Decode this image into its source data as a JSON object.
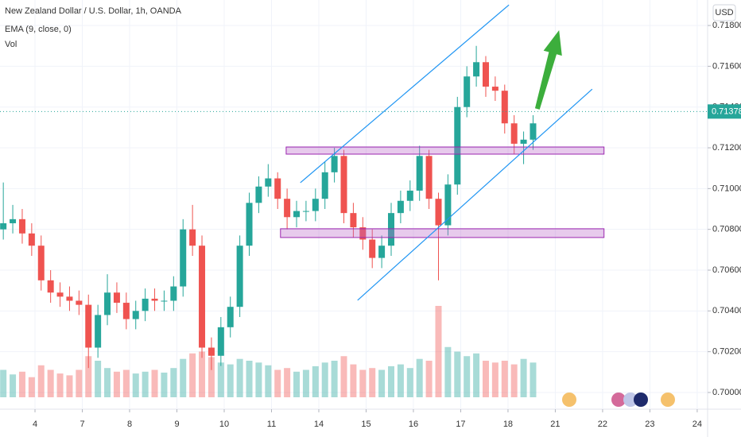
{
  "chart_data": {
    "type": "candlestick",
    "title": "New Zealand Dollar / U.S. Dollar, 1h, OANDA",
    "indicators": [
      "EMA (9, close, 0)",
      "Vol"
    ],
    "currency_button": "USD",
    "up_color": "#26a69a",
    "down_color": "#ef5350",
    "x": [
      -0.67,
      -0.47,
      -0.27,
      -0.07,
      0.13,
      0.33,
      0.53,
      0.73,
      0.93,
      1.13,
      1.33,
      1.53,
      1.73,
      1.93,
      2.13,
      2.33,
      2.53,
      2.73,
      2.93,
      3.13,
      3.33,
      3.53,
      3.73,
      3.93,
      4.13,
      4.33,
      4.53,
      4.73,
      4.93,
      5.13,
      5.33,
      5.53,
      5.73,
      5.93,
      6.13,
      6.33,
      6.53,
      6.73,
      6.93,
      7.13,
      7.33,
      7.53,
      7.73,
      7.93,
      8.13,
      8.33,
      8.53,
      8.73,
      8.93,
      9.13,
      9.33,
      9.53,
      9.73,
      9.93,
      10.13,
      10.33,
      10.53
    ],
    "open": [
      0.708,
      0.7083,
      0.7085,
      0.7078,
      0.7072,
      0.7055,
      0.7049,
      0.7047,
      0.7045,
      0.7043,
      0.7022,
      0.7038,
      0.7049,
      0.7044,
      0.7036,
      0.704,
      0.7046,
      0.7045,
      0.7045,
      0.7052,
      0.708,
      0.7072,
      0.7022,
      0.7018,
      0.7032,
      0.7042,
      0.7072,
      0.7093,
      0.7101,
      0.7105,
      0.7095,
      0.7086,
      0.7089,
      0.7089,
      0.7095,
      0.7108,
      0.7116,
      0.7088,
      0.7081,
      0.7075,
      0.7066,
      0.7072,
      0.7088,
      0.7094,
      0.7099,
      0.7116,
      0.7095,
      0.7082,
      0.7102,
      0.714,
      0.7155,
      0.7162,
      0.715,
      0.7148,
      0.7132,
      0.7122,
      0.7124
    ],
    "high": [
      0.7103,
      0.7092,
      0.709,
      0.7083,
      0.7077,
      0.706,
      0.7054,
      0.7052,
      0.705,
      0.7048,
      0.7043,
      0.7058,
      0.7054,
      0.7049,
      0.7045,
      0.7051,
      0.7051,
      0.705,
      0.7057,
      0.7085,
      0.7092,
      0.7077,
      0.7027,
      0.7037,
      0.7047,
      0.7077,
      0.7098,
      0.7106,
      0.7112,
      0.7108,
      0.71,
      0.7094,
      0.7094,
      0.71,
      0.7113,
      0.712,
      0.7119,
      0.7093,
      0.7086,
      0.708,
      0.7077,
      0.7093,
      0.7099,
      0.7104,
      0.7121,
      0.7119,
      0.7098,
      0.7107,
      0.7145,
      0.716,
      0.717,
      0.7165,
      0.7155,
      0.7151,
      0.7136,
      0.7128,
      0.7136
    ],
    "low": [
      0.7075,
      0.7078,
      0.7073,
      0.7067,
      0.705,
      0.7044,
      0.7042,
      0.704,
      0.7038,
      0.7012,
      0.7017,
      0.7033,
      0.7039,
      0.7031,
      0.7031,
      0.7035,
      0.704,
      0.704,
      0.704,
      0.7047,
      0.7067,
      0.7017,
      0.7011,
      0.7013,
      0.7027,
      0.7037,
      0.7067,
      0.7088,
      0.7096,
      0.709,
      0.708,
      0.7081,
      0.7084,
      0.7084,
      0.709,
      0.7103,
      0.7083,
      0.7076,
      0.707,
      0.7061,
      0.7061,
      0.7067,
      0.7083,
      0.7089,
      0.7094,
      0.709,
      0.7055,
      0.7077,
      0.7097,
      0.7135,
      0.715,
      0.7145,
      0.7143,
      0.7127,
      0.7117,
      0.7112,
      0.7119
    ],
    "close": [
      0.7083,
      0.7085,
      0.7078,
      0.7072,
      0.7055,
      0.7049,
      0.7047,
      0.7045,
      0.7043,
      0.7022,
      0.7038,
      0.7049,
      0.7044,
      0.7036,
      0.704,
      0.7046,
      0.7045,
      0.7045,
      0.7052,
      0.708,
      0.7072,
      0.7022,
      0.7018,
      0.7032,
      0.7042,
      0.7072,
      0.7093,
      0.7101,
      0.7105,
      0.7095,
      0.7086,
      0.7089,
      0.7089,
      0.7095,
      0.7108,
      0.7116,
      0.7088,
      0.7081,
      0.7075,
      0.7066,
      0.7072,
      0.7088,
      0.7094,
      0.7099,
      0.7116,
      0.7095,
      0.7082,
      0.7102,
      0.714,
      0.7155,
      0.7162,
      0.715,
      0.7148,
      0.7132,
      0.7122,
      0.7124,
      0.7132
    ],
    "volume": [
      30,
      25,
      28,
      22,
      35,
      30,
      26,
      24,
      30,
      45,
      40,
      32,
      28,
      30,
      26,
      28,
      30,
      27,
      32,
      42,
      48,
      50,
      44,
      38,
      36,
      42,
      40,
      38,
      35,
      30,
      32,
      28,
      30,
      34,
      38,
      40,
      45,
      36,
      30,
      32,
      30,
      34,
      36,
      32,
      42,
      40,
      100,
      55,
      50,
      45,
      48,
      40,
      38,
      40,
      36,
      42,
      38
    ],
    "volume_lim": [
      0,
      100
    ],
    "xlim": [
      -0.74,
      14.22
    ],
    "ylim": [
      0.69918,
      0.71925
    ],
    "xticks": [
      {
        "value": 0,
        "label": "4"
      },
      {
        "value": 1,
        "label": "7"
      },
      {
        "value": 2,
        "label": "8"
      },
      {
        "value": 3,
        "label": "9"
      },
      {
        "value": 4,
        "label": "10"
      },
      {
        "value": 5,
        "label": "11"
      },
      {
        "value": 6,
        "label": "14"
      },
      {
        "value": 7,
        "label": "15"
      },
      {
        "value": 8,
        "label": "16"
      },
      {
        "value": 9,
        "label": "17"
      },
      {
        "value": 10,
        "label": "18"
      },
      {
        "value": 11,
        "label": "21"
      },
      {
        "value": 12,
        "label": "22"
      },
      {
        "value": 13,
        "label": "23"
      },
      {
        "value": 14,
        "label": "24"
      }
    ],
    "yticks": [
      {
        "value": 0.7,
        "label": "0.70000"
      },
      {
        "value": 0.702,
        "label": "0.70200"
      },
      {
        "value": 0.704,
        "label": "0.70400"
      },
      {
        "value": 0.706,
        "label": "0.70600"
      },
      {
        "value": 0.708,
        "label": "0.70800"
      },
      {
        "value": 0.71,
        "label": "0.71000"
      },
      {
        "value": 0.712,
        "label": "0.71200"
      },
      {
        "value": 0.714,
        "label": "0.71400"
      },
      {
        "value": 0.716,
        "label": "0.71600"
      },
      {
        "value": 0.718,
        "label": "0.71800"
      }
    ],
    "last_price": {
      "value": 0.71378,
      "label": "0.71378"
    },
    "zones": [
      {
        "x": [
          5.31,
          12.03
        ],
        "y": [
          0.71169,
          0.71204
        ]
      },
      {
        "x": [
          5.19,
          12.03
        ],
        "y": [
          0.7076,
          0.70803
        ]
      }
    ],
    "trendlines": [
      {
        "x": [
          5.61,
          10.02
        ],
        "y": [
          0.71029,
          0.71901
        ]
      },
      {
        "x": [
          6.82,
          11.78
        ],
        "y": [
          0.70452,
          0.71488
        ]
      }
    ],
    "arrow": {
      "x": [
        10.62,
        11.08
      ],
      "y": [
        0.71391,
        0.71777
      ],
      "color": "#3cae3c"
    },
    "grid": true
  }
}
